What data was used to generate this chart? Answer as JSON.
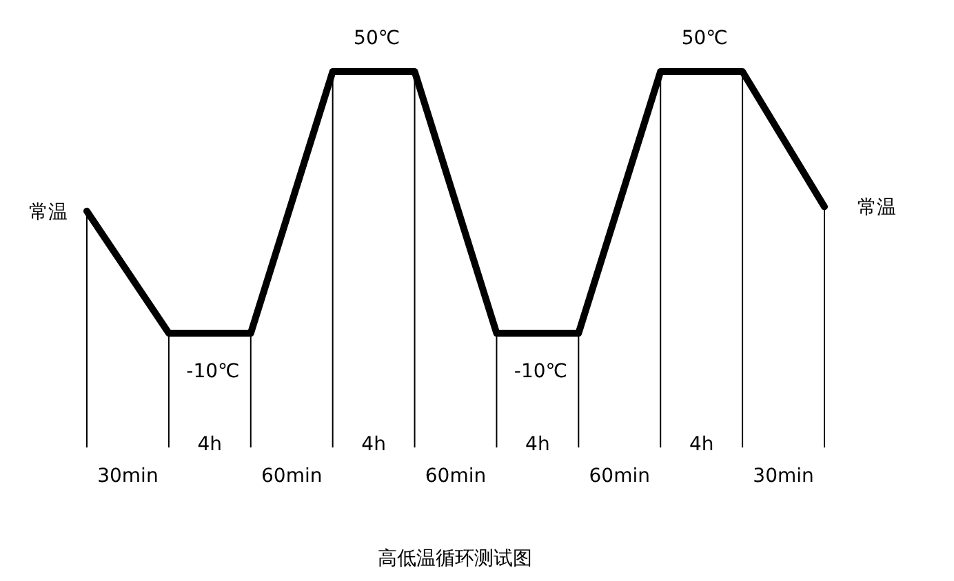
{
  "chart_data": {
    "type": "line",
    "title": "高低温循环测试图",
    "categories": [
      null,
      null,
      null,
      null,
      null,
      null,
      null,
      null,
      null,
      null
    ],
    "series": [
      {
        "color": "#000000",
        "values": [
          18,
          -10,
          -10,
          50,
          50,
          -10,
          -10,
          50,
          50,
          19
        ],
        "value_labels": [
          "常温",
          "-10℃",
          null,
          "50℃",
          null,
          "-10℃",
          null,
          "50℃",
          null,
          "常温"
        ]
      }
    ],
    "annotations": [
      "30min",
      "4h",
      "60min",
      "4h",
      "60min",
      "4h",
      "60min",
      "4h",
      "30min"
    ],
    "grid": "x",
    "marker": "none",
    "line_style": "solid"
  }
}
